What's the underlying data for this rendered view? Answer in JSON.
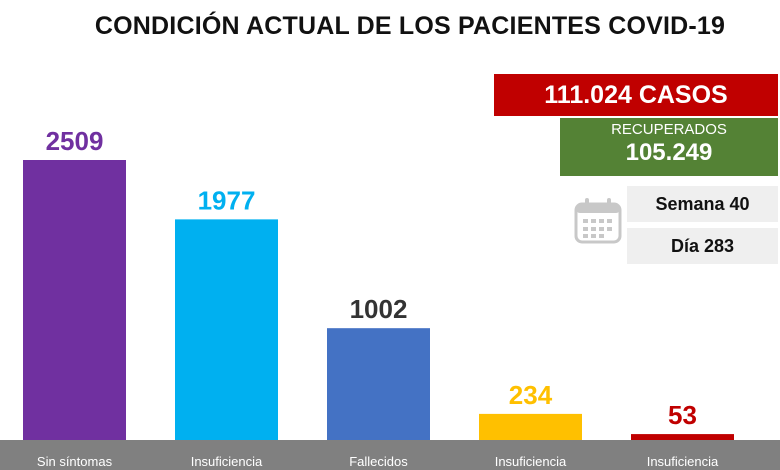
{
  "title": "CONDICIÓN ACTUAL DE LOS PACIENTES COVID-19",
  "summary": {
    "cases": "111.024 CASOS",
    "recovered_label": "RECUPERADOS",
    "recovered_value": "105.249",
    "week": "Semana 40",
    "day": "Día 283"
  },
  "icons": {
    "calendar": "calendar-icon"
  },
  "chart_data": {
    "type": "bar",
    "categories": [
      "Sin síntomas",
      "Insuficiencia",
      "Fallecidos",
      "Insuficiencia",
      "Insuficiencia"
    ],
    "values": [
      2509,
      1977,
      1002,
      234,
      53
    ],
    "data_labels": [
      "2509",
      "1977",
      "1002",
      "234",
      "53"
    ],
    "colors": [
      "#7030a0",
      "#00b0f0",
      "#4472c4",
      "#ffc000",
      "#c00000"
    ],
    "label_colors": [
      "#7030a0",
      "#00b0f0",
      "#333333",
      "#ffc000",
      "#c00000"
    ],
    "axis_bar_color": "#808080",
    "ylim": [
      0,
      2509
    ],
    "grid": false,
    "legend": "none"
  }
}
